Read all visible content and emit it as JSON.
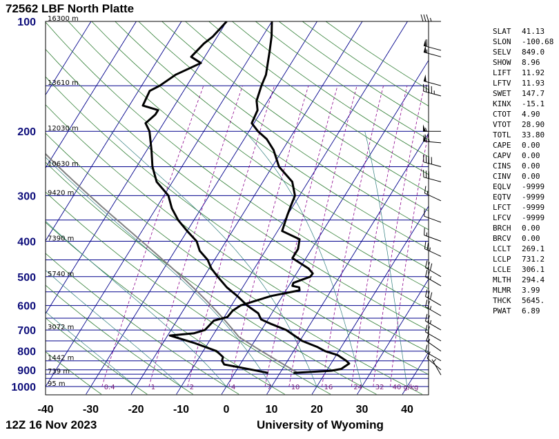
{
  "chart_data": {
    "type": "skew-t",
    "title": "72562 LBF North Platte",
    "footer_left": "12Z 16 Nov 2023",
    "footer_right": "University of Wyoming",
    "pressure_ticks": [
      100,
      200,
      300,
      400,
      500,
      600,
      700,
      800,
      900,
      1000
    ],
    "temperature_ticks": [
      -40,
      -30,
      -20,
      -10,
      0,
      10,
      20,
      30,
      40
    ],
    "xlim": [
      -40,
      45
    ],
    "ylim_hpa": [
      1000,
      100
    ],
    "height_labels": [
      {
        "text": "16300 m",
        "p": 100
      },
      {
        "text": "13610 m",
        "p": 150
      },
      {
        "text": "12030 m",
        "p": 200
      },
      {
        "text": "10630 m",
        "p": 250
      },
      {
        "text": "9420 m",
        "p": 300
      },
      {
        "text": "7390 m",
        "p": 400
      },
      {
        "text": "5740 m",
        "p": 500
      },
      {
        "text": "3072 m",
        "p": 700
      },
      {
        "text": "1442 m",
        "p": 850
      },
      {
        "text": "739 m",
        "p": 925
      },
      {
        "text": "95 m",
        "p": 1000
      }
    ],
    "mixing_ratio_labels": [
      "0.4",
      "1",
      "2",
      "4",
      "7",
      "10",
      "16",
      "24",
      "32",
      "40 g/kg"
    ],
    "temperature_profile": [
      {
        "p": 918,
        "t": 7.4
      },
      {
        "p": 900,
        "t": 3.5
      },
      {
        "p": 870,
        "t": -3.5
      },
      {
        "p": 850,
        "t": -4.5
      },
      {
        "p": 830,
        "t": -4.8
      },
      {
        "p": 800,
        "t": -7.0
      },
      {
        "p": 760,
        "t": -13.0
      },
      {
        "p": 725,
        "t": -19.5
      },
      {
        "p": 715,
        "t": -14.5
      },
      {
        "p": 700,
        "t": -12.5
      },
      {
        "p": 660,
        "t": -11.8
      },
      {
        "p": 645,
        "t": -9.3
      },
      {
        "p": 620,
        "t": -9.0
      },
      {
        "p": 600,
        "t": -8.0
      },
      {
        "p": 565,
        "t": -2.5
      },
      {
        "p": 545,
        "t": 3.0
      },
      {
        "p": 535,
        "t": 2.5
      },
      {
        "p": 530,
        "t": 0.8
      },
      {
        "p": 520,
        "t": 0.6
      },
      {
        "p": 500,
        "t": 3.5
      },
      {
        "p": 490,
        "t": 3.6
      },
      {
        "p": 475,
        "t": 2.0
      },
      {
        "p": 445,
        "t": -3.0
      },
      {
        "p": 420,
        "t": -3.0
      },
      {
        "p": 395,
        "t": -4.0
      },
      {
        "p": 375,
        "t": -9.0
      },
      {
        "p": 340,
        "t": -10.0
      },
      {
        "p": 320,
        "t": -10.5
      },
      {
        "p": 300,
        "t": -11.0
      },
      {
        "p": 275,
        "t": -13.5
      },
      {
        "p": 250,
        "t": -18.5
      },
      {
        "p": 225,
        "t": -22.0
      },
      {
        "p": 210,
        "t": -25.0
      },
      {
        "p": 200,
        "t": -28.0
      },
      {
        "p": 190,
        "t": -30.5
      },
      {
        "p": 175,
        "t": -31.0
      },
      {
        "p": 165,
        "t": -32.5
      },
      {
        "p": 150,
        "t": -33.5
      },
      {
        "p": 140,
        "t": -34.0
      },
      {
        "p": 120,
        "t": -36.5
      },
      {
        "p": 110,
        "t": -38.0
      },
      {
        "p": 100,
        "t": -40.0
      }
    ],
    "dewpoint_profile": [
      {
        "p": 918,
        "t": 13.0
      },
      {
        "p": 905,
        "t": 21.0
      },
      {
        "p": 895,
        "t": 23.0
      },
      {
        "p": 880,
        "t": 23.5
      },
      {
        "p": 865,
        "t": 24.0
      },
      {
        "p": 850,
        "t": 23.0
      },
      {
        "p": 820,
        "t": 20.3
      },
      {
        "p": 800,
        "t": 17.0
      },
      {
        "p": 780,
        "t": 14.8
      },
      {
        "p": 750,
        "t": 10.5
      },
      {
        "p": 700,
        "t": 5.5
      },
      {
        "p": 675,
        "t": 1.5
      },
      {
        "p": 655,
        "t": -1.5
      },
      {
        "p": 630,
        "t": -3.0
      },
      {
        "p": 600,
        "t": -6.5
      },
      {
        "p": 565,
        "t": -10.0
      },
      {
        "p": 535,
        "t": -13.5
      },
      {
        "p": 500,
        "t": -17.0
      },
      {
        "p": 475,
        "t": -19.5
      },
      {
        "p": 450,
        "t": -21.5
      },
      {
        "p": 425,
        "t": -24.5
      },
      {
        "p": 400,
        "t": -26.5
      },
      {
        "p": 375,
        "t": -30.0
      },
      {
        "p": 350,
        "t": -33.5
      },
      {
        "p": 325,
        "t": -36.5
      },
      {
        "p": 300,
        "t": -39.0
      },
      {
        "p": 275,
        "t": -43.5
      },
      {
        "p": 250,
        "t": -46.5
      },
      {
        "p": 225,
        "t": -49.0
      },
      {
        "p": 200,
        "t": -52.0
      },
      {
        "p": 190,
        "t": -54.0
      },
      {
        "p": 180,
        "t": -53.0
      },
      {
        "p": 175,
        "t": -53.0
      },
      {
        "p": 170,
        "t": -57.0
      },
      {
        "p": 155,
        "t": -57.5
      },
      {
        "p": 150,
        "t": -56.0
      },
      {
        "p": 140,
        "t": -54.0
      },
      {
        "p": 130,
        "t": -50.0
      },
      {
        "p": 125,
        "t": -53.0
      },
      {
        "p": 115,
        "t": -52.0
      },
      {
        "p": 110,
        "t": -51.0
      },
      {
        "p": 100,
        "t": -50.0
      }
    ],
    "colors": {
      "profile": "#000000",
      "grid": "#00008b",
      "dry_adiabat": "#2e7d32",
      "moist_adiabat": "#2e7d7d",
      "mixing_ratio": "#8b008b",
      "parcel": "#808080"
    }
  },
  "indices": [
    {
      "name": "SLAT",
      "value": "41.13"
    },
    {
      "name": "SLON",
      "value": "-100.68"
    },
    {
      "name": "SELV",
      "value": "849.0"
    },
    {
      "name": "SHOW",
      "value": "8.96"
    },
    {
      "name": "LIFT",
      "value": "11.92"
    },
    {
      "name": "LFTV",
      "value": "11.93"
    },
    {
      "name": "SWET",
      "value": "147.7"
    },
    {
      "name": "KINX",
      "value": "-15.1"
    },
    {
      "name": "CTOT",
      "value": "4.90"
    },
    {
      "name": "VTOT",
      "value": "28.90"
    },
    {
      "name": "TOTL",
      "value": "33.80"
    },
    {
      "name": "CAPE",
      "value": "0.00"
    },
    {
      "name": "CAPV",
      "value": "0.00"
    },
    {
      "name": "CINS",
      "value": "0.00"
    },
    {
      "name": "CINV",
      "value": "0.00"
    },
    {
      "name": "EQLV",
      "value": "-9999"
    },
    {
      "name": "EQTV",
      "value": "-9999"
    },
    {
      "name": "LFCT",
      "value": "-9999"
    },
    {
      "name": "LFCV",
      "value": "-9999"
    },
    {
      "name": "BRCH",
      "value": "0.00"
    },
    {
      "name": "BRCV",
      "value": "0.00"
    },
    {
      "name": "LCLT",
      "value": "269.1"
    },
    {
      "name": "LCLP",
      "value": "731.2"
    },
    {
      "name": "LCLE",
      "value": "306.1"
    },
    {
      "name": "MLTH",
      "value": "294.4"
    },
    {
      "name": "MLMR",
      "value": "3.99"
    },
    {
      "name": "THCK",
      "value": "5645."
    },
    {
      "name": "PWAT",
      "value": "6.89"
    }
  ],
  "wind_barbs": [
    {
      "p": 100,
      "dir": 270,
      "kt": 35
    },
    {
      "p": 120,
      "dir": 285,
      "kt": 60
    },
    {
      "p": 125,
      "dir": 285,
      "kt": 55
    },
    {
      "p": 150,
      "dir": 285,
      "kt": 50
    },
    {
      "p": 160,
      "dir": 285,
      "kt": 45
    },
    {
      "p": 200,
      "dir": 270,
      "kt": 55
    },
    {
      "p": 215,
      "dir": 275,
      "kt": 70
    },
    {
      "p": 250,
      "dir": 285,
      "kt": 40
    },
    {
      "p": 275,
      "dir": 285,
      "kt": 30
    },
    {
      "p": 310,
      "dir": 295,
      "kt": 15
    },
    {
      "p": 355,
      "dir": 290,
      "kt": 10
    },
    {
      "p": 400,
      "dir": 290,
      "kt": 15
    },
    {
      "p": 440,
      "dir": 295,
      "kt": 25
    },
    {
      "p": 500,
      "dir": 300,
      "kt": 30
    },
    {
      "p": 530,
      "dir": 300,
      "kt": 25
    },
    {
      "p": 600,
      "dir": 300,
      "kt": 30
    },
    {
      "p": 640,
      "dir": 300,
      "kt": 25
    },
    {
      "p": 700,
      "dir": 300,
      "kt": 25
    },
    {
      "p": 750,
      "dir": 300,
      "kt": 20
    },
    {
      "p": 800,
      "dir": 305,
      "kt": 15
    },
    {
      "p": 850,
      "dir": 300,
      "kt": 10
    },
    {
      "p": 900,
      "dir": 310,
      "kt": 10
    },
    {
      "p": 930,
      "dir": 330,
      "kt": 5
    }
  ]
}
